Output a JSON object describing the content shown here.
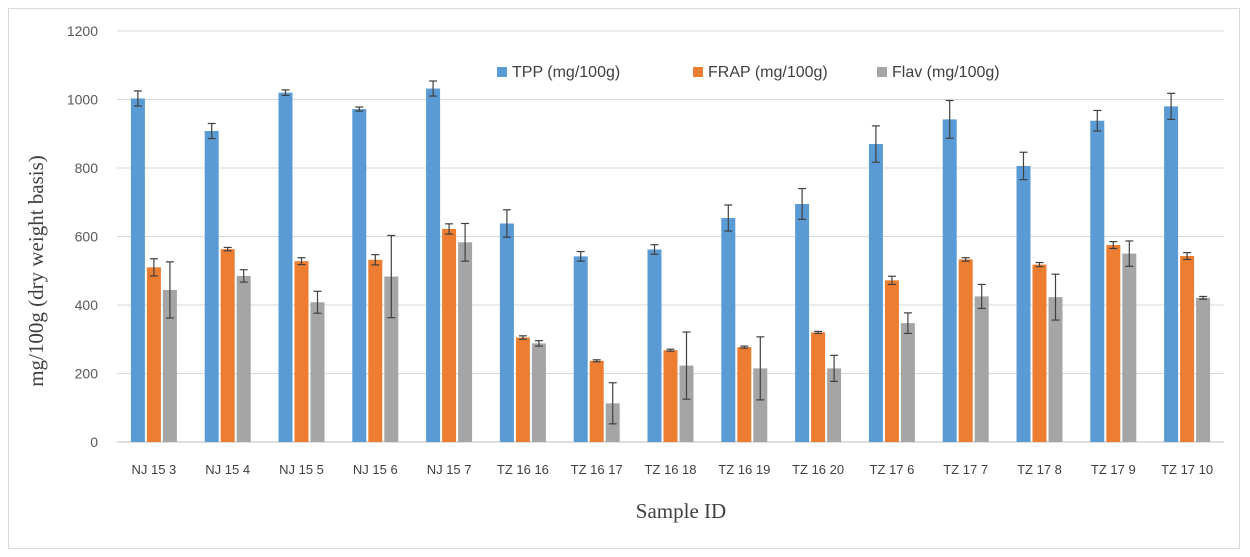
{
  "chart_data": {
    "type": "bar",
    "xlabel": "Sample ID",
    "ylabel": "mg/100g (dry weight basis)",
    "ylim": [
      0,
      1200
    ],
    "yticks": [
      0,
      200,
      400,
      600,
      800,
      1000,
      1200
    ],
    "grid": true,
    "legend_position": "top-right",
    "categories": [
      "NJ 15 3",
      "NJ 15 4",
      "NJ 15 5",
      "NJ 15 6",
      "NJ 15 7",
      "TZ 16 16",
      "TZ 16 17",
      "TZ 16 18",
      "TZ 16 19",
      "TZ 16 20",
      "TZ 17 6",
      "TZ 17 7",
      "TZ 17 8",
      "TZ 17 9",
      "TZ 17 10"
    ],
    "series": [
      {
        "name": "TPP (mg/100g)",
        "color": "#5b9bd5",
        "values": [
          1003,
          908,
          1020,
          972,
          1032,
          638,
          542,
          562,
          654,
          695,
          870,
          942,
          806,
          938,
          980
        ],
        "errors": [
          22,
          22,
          8,
          6,
          22,
          40,
          14,
          14,
          38,
          45,
          53,
          55,
          40,
          30,
          38
        ]
      },
      {
        "name": "FRAP (mg/100g)",
        "color": "#ed7d31",
        "values": [
          510,
          563,
          528,
          532,
          622,
          305,
          237,
          268,
          277,
          320,
          472,
          533,
          518,
          575,
          543
        ],
        "errors": [
          25,
          5,
          10,
          15,
          15,
          5,
          3,
          3,
          3,
          3,
          12,
          5,
          6,
          10,
          10
        ]
      },
      {
        "name": "Flav (mg/100g)",
        "color": "#a5a5a5",
        "values": [
          444,
          485,
          408,
          483,
          583,
          288,
          113,
          223,
          215,
          215,
          347,
          425,
          423,
          550,
          421
        ],
        "errors": [
          82,
          18,
          32,
          120,
          55,
          8,
          60,
          98,
          92,
          38,
          30,
          35,
          67,
          37,
          4
        ]
      }
    ]
  }
}
